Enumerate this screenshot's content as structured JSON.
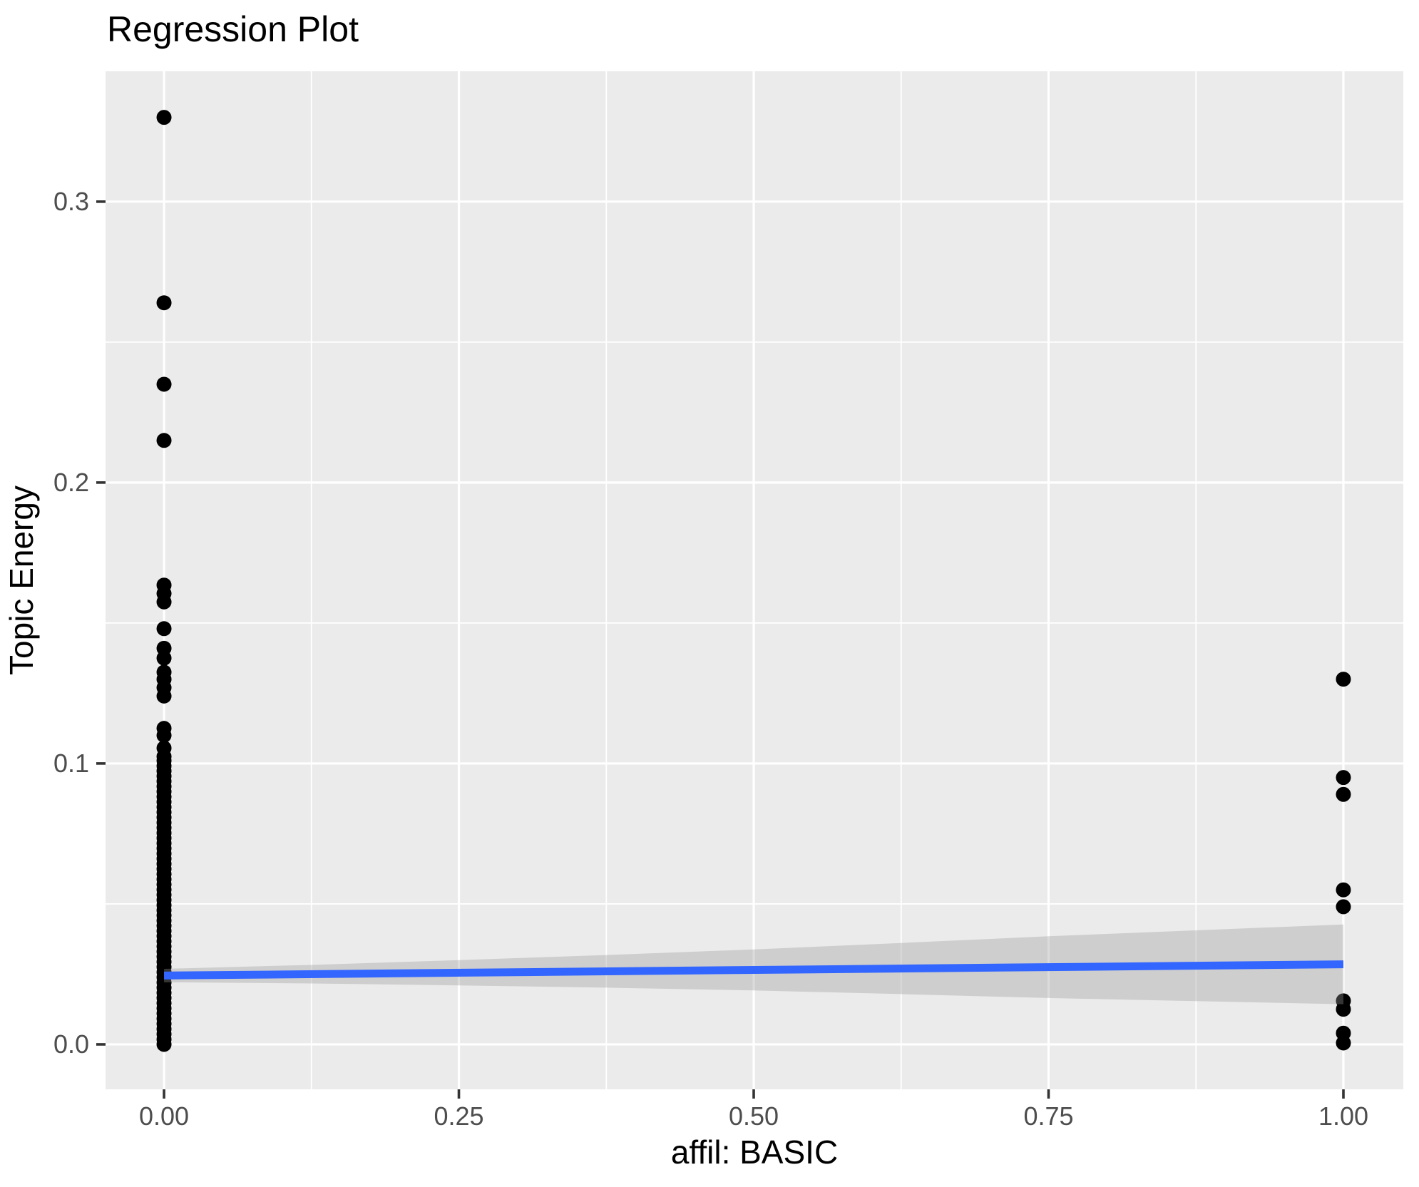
{
  "chart_data": {
    "type": "scatter",
    "title": "Regression Plot",
    "xlabel": "affil: BASIC",
    "ylabel": "Topic Energy",
    "x_tick_labels": [
      "0.00",
      "0.25",
      "0.50",
      "0.75",
      "1.00"
    ],
    "x_tick_values": [
      0,
      0.25,
      0.5,
      0.75,
      1.0
    ],
    "y_tick_labels": [
      "0.0",
      "0.1",
      "0.2",
      "0.3"
    ],
    "y_tick_values": [
      0,
      0.1,
      0.2,
      0.3
    ],
    "xlim": [
      -0.0496,
      1.0508
    ],
    "ylim": [
      -0.016,
      0.3464
    ],
    "minor_x": [
      0.125,
      0.375,
      0.625,
      0.875
    ],
    "minor_y": [
      0.05,
      0.15,
      0.25
    ],
    "grid": "on",
    "legend": "none",
    "series": [
      {
        "name": "observations at affil=0",
        "x": 0,
        "values": [
          0.33,
          0.264,
          0.235,
          0.215,
          0.1635,
          0.1605,
          0.1575,
          0.148,
          0.141,
          0.1375,
          0.1325,
          0.13,
          0.127,
          0.124,
          0.1125,
          0.11,
          0.1055,
          0.1025
        ]
      },
      {
        "name": "dense strip of observations at affil=0",
        "x": 0,
        "range": {
          "min": 0.0,
          "max": 0.101,
          "count": 56
        }
      },
      {
        "name": "observations at affil=1",
        "x": 1,
        "values": [
          0.13,
          0.095,
          0.089,
          0.055,
          0.049,
          0.0155,
          0.0125,
          0.004,
          0.0005
        ]
      }
    ],
    "regression_line": {
      "intercept": 0.0245,
      "slope": 0.004,
      "x_start": 0,
      "x_end": 1
    },
    "confidence_band": {
      "x": [
        0,
        0.125,
        0.25,
        0.375,
        0.5,
        0.625,
        0.75,
        0.875,
        1.0
      ],
      "half_width": [
        0.0024,
        0.0033,
        0.0045,
        0.0058,
        0.0073,
        0.0091,
        0.011,
        0.0126,
        0.0142
      ]
    },
    "colors": {
      "background": "#FFFFFF",
      "panel": "#EBEBEB",
      "grid": "#FFFFFF",
      "point": "#000000",
      "line": "#3366FF",
      "band": "#999999",
      "band_opacity": "0.35",
      "tick": "#333333",
      "tick_label": "#4D4D4D",
      "axis_title": "#000000",
      "title": "#000000"
    }
  }
}
